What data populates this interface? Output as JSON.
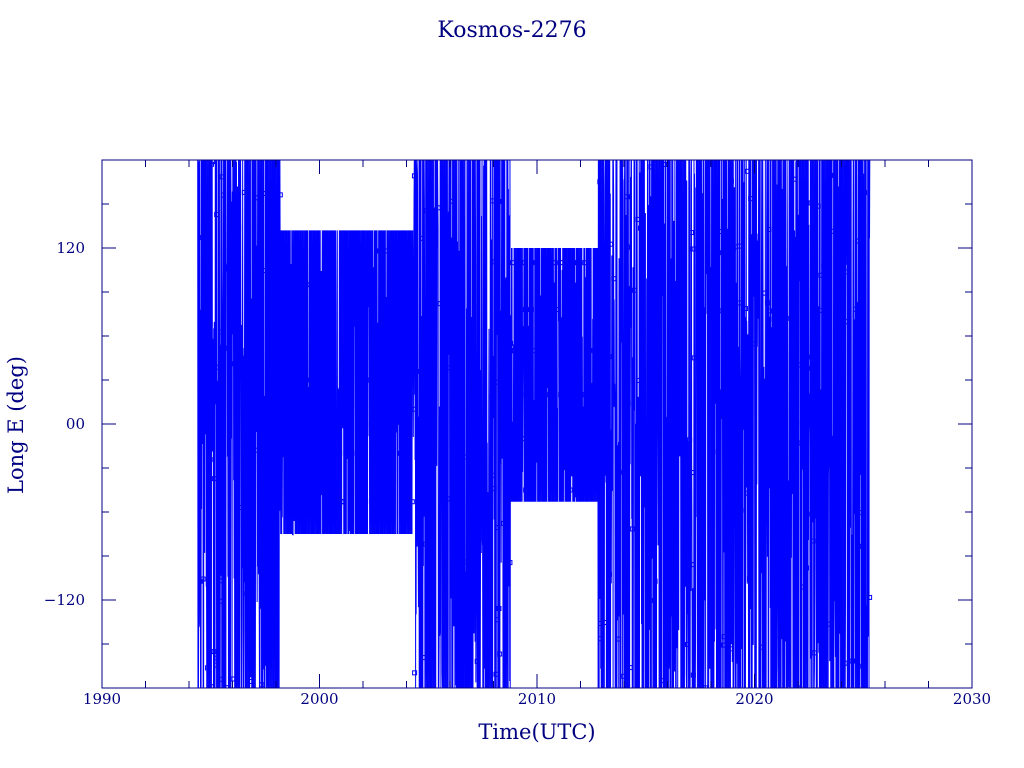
{
  "chart_data": {
    "type": "line",
    "title": "Kosmos-2276",
    "xlabel": "Time(UTC)",
    "ylabel": "Long E (deg)",
    "xlim": [
      1990,
      2030
    ],
    "ylim": [
      -180,
      180
    ],
    "xticks": [
      {
        "value": 1990,
        "label": "1990"
      },
      {
        "value": 2000,
        "label": "2000"
      },
      {
        "value": 2010,
        "label": "2010"
      },
      {
        "value": 2020,
        "label": "2020"
      },
      {
        "value": 2030,
        "label": "2030"
      }
    ],
    "yticks": [
      {
        "value": 120,
        "label": "120"
      },
      {
        "value": 0,
        "label": "00"
      },
      {
        "value": -120,
        "label": "−120"
      }
    ],
    "grid": false,
    "line_color": "#0000ff",
    "axis_color": "#000080",
    "data_start": 1994.4,
    "data_end": 2025.3,
    "series": [
      {
        "x": [
          1994.4,
          1996.0,
          1997.5,
          1998.1,
          1999.0,
          2000.0,
          2001.0,
          2002.0,
          2003.0,
          2004.2,
          2004.6,
          2005.5,
          2007.0,
          2008.7,
          2009.5,
          2010.5,
          2011.5,
          2012.5,
          2013.0,
          2014.0,
          2015.0,
          2016.0,
          2017.0,
          2018.0,
          2019.0,
          2020.0,
          2021.0,
          2022.0,
          2023.0,
          2024.0,
          2025.3
        ],
        "y": [
          -150,
          160,
          -170,
          130,
          -75,
          118,
          -53,
          132,
          -75,
          118,
          -160,
          150,
          -160,
          120,
          -50,
          100,
          -60,
          95,
          -170,
          170,
          -170,
          170,
          -170,
          170,
          -170,
          170,
          -170,
          170,
          -170,
          170,
          -160
        ]
      }
    ]
  }
}
